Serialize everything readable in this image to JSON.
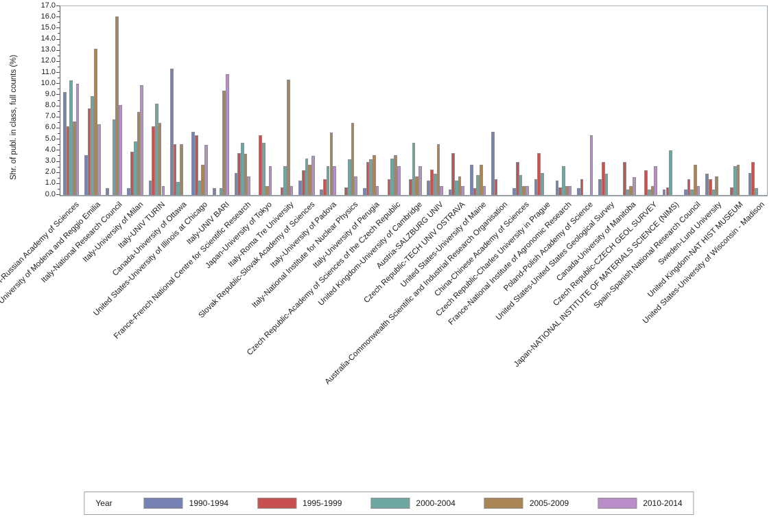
{
  "chart_data": {
    "type": "bar",
    "title": "",
    "xlabel": "",
    "ylabel": "Shr. of publ. in class, full counts (%)",
    "ylim": [
      0,
      17
    ],
    "ytick_step": 1.0,
    "ytick_minor_step": 0.5,
    "ytick_labels": [
      "0.0",
      "1.0",
      "2.0",
      "3.0",
      "4.0",
      "5.0",
      "6.0",
      "7.0",
      "8.0",
      "9.0",
      "10.0",
      "11.0",
      "12.0",
      "13.0",
      "14.0",
      "15.0",
      "16.0",
      "17.0"
    ],
    "grid": false,
    "legend_title": "Year",
    "legend_position": "bottom",
    "bar_outline_color": "#8e8e8e",
    "categories": [
      "Russian Federation-Russian Academy of Sciences",
      "Italy-University of Modena and Reggio Emilia",
      "Italy-National Research Council",
      "Italy-University of Milan",
      "Italy-UNIV TURIN",
      "Canada-University of Ottawa",
      "United States-University of Illinois at Chicago",
      "Italy-UNIV BARI",
      "France-French National Centre for Scientific Research",
      "Japan-University of Tokyo",
      "Italy-Roma Tre University",
      "Slovak Republic-Slovak Academy of Sciences",
      "Italy-University of Padova",
      "Italy-National Institute for Nuclear Physics",
      "Italy-University of Perugia",
      "Czech Republic-Academy of Sciences of the Czech Republic",
      "United Kingdom-University of Cambridge",
      "Austria-SALZBURG UNIV",
      "Czech Republic-TECH UNIV OSTRAVA",
      "United States-University of Maine",
      "Australia-Commonwealth Scientific and Industrial Research Organisation",
      "China-Chinese Academy of Sciences",
      "Czech Republic-Charles University in Prague",
      "France-National Institute of Agronomic Research",
      "Poland-Polish Academy of Science",
      "United States-United States Geological Survey",
      "Canada-University of Manitoba",
      "Czech Republic-CZECH GEOL SURVEY",
      "Japan-NATIONAL INSTITUTE OF MATERIALS SCIENCE (NIMS)",
      "Spain-Spanish National Research Council",
      "Sweden-Lund University",
      "United Kingdom-NAT HIST MUSEUM",
      "United States-University of Wisconsin - Madison"
    ],
    "series": [
      {
        "name": "1990-1994",
        "color": "#7681b6",
        "values": [
          9.3,
          3.6,
          0.6,
          0.6,
          1.3,
          11.4,
          5.7,
          0.6,
          2.0,
          0,
          0,
          1.3,
          0.5,
          0,
          0.6,
          0,
          0,
          1.3,
          0.5,
          2.7,
          5.7,
          0.6,
          1.4,
          1.3,
          0.6,
          1.4,
          0,
          0,
          0.5,
          0.5,
          1.9,
          0,
          2.0
        ]
      },
      {
        "name": "1995-1999",
        "color": "#c8514f",
        "values": [
          6.2,
          7.8,
          0,
          3.9,
          6.2,
          4.6,
          5.4,
          0,
          3.8,
          5.4,
          0.7,
          2.2,
          1.4,
          0.7,
          3.0,
          1.4,
          1.4,
          2.3,
          3.8,
          0.6,
          1.4,
          3.0,
          3.8,
          0.7,
          1.4,
          3.0,
          3.0,
          2.2,
          0.7,
          1.4,
          1.4,
          0.7,
          3.0
        ]
      },
      {
        "name": "2000-2004",
        "color": "#6ca7a1",
        "values": [
          10.3,
          8.9,
          6.8,
          4.8,
          8.2,
          1.2,
          1.3,
          0.6,
          4.7,
          4.7,
          2.6,
          3.3,
          2.6,
          3.2,
          3.2,
          3.3,
          4.7,
          1.9,
          1.3,
          1.8,
          0,
          1.8,
          2.0,
          2.6,
          0,
          1.9,
          0.5,
          0.5,
          4.0,
          0.5,
          0.5,
          2.6,
          0.6
        ]
      },
      {
        "name": "2005-2009",
        "color": "#aa8553",
        "values": [
          6.6,
          13.2,
          16.1,
          7.5,
          6.5,
          4.6,
          2.7,
          9.4,
          3.7,
          0.8,
          10.4,
          2.7,
          5.6,
          6.5,
          3.6,
          3.6,
          1.7,
          4.6,
          1.7,
          2.7,
          0,
          0.8,
          0,
          0.8,
          0,
          0,
          0.8,
          0.8,
          0,
          2.7,
          1.7,
          2.7,
          0
        ]
      },
      {
        "name": "2010-2014",
        "color": "#b98dc8",
        "values": [
          10.0,
          6.4,
          8.1,
          9.9,
          0.8,
          0,
          4.5,
          10.9,
          1.7,
          2.6,
          0.8,
          3.5,
          2.6,
          1.7,
          0.8,
          2.6,
          2.6,
          0.8,
          0.8,
          0.8,
          0,
          0.8,
          0,
          0.8,
          5.4,
          0,
          1.6,
          2.6,
          0,
          0.8,
          0,
          0,
          0
        ]
      }
    ]
  }
}
